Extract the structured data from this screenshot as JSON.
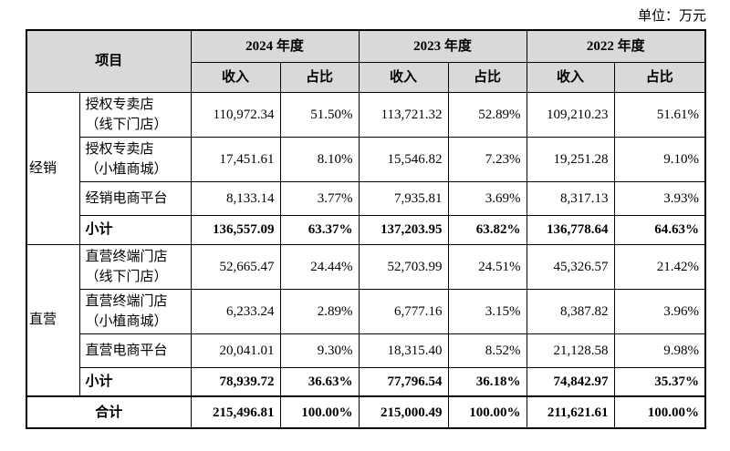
{
  "unit": "单位：万元",
  "table": {
    "header": {
      "item": "项目",
      "years": [
        "2024 年度",
        "2023 年度",
        "2022 年度"
      ],
      "sub": [
        "收入",
        "占比"
      ]
    },
    "groups": [
      {
        "name": "经销",
        "rows": [
          {
            "item": [
              "授权专卖店",
              "（线下门店）"
            ],
            "values": [
              "110,972.34",
              "51.50%",
              "113,721.32",
              "52.89%",
              "109,210.23",
              "51.61%"
            ]
          },
          {
            "item": [
              "授权专卖店",
              "（小植商城）"
            ],
            "values": [
              "17,451.61",
              "8.10%",
              "15,546.82",
              "7.23%",
              "19,251.28",
              "9.10%"
            ]
          },
          {
            "item": [
              "经销电商平台"
            ],
            "values": [
              "8,133.14",
              "3.77%",
              "7,935.81",
              "3.69%",
              "8,317.13",
              "3.93%"
            ]
          },
          {
            "item": [
              "小计"
            ],
            "bold": true,
            "values": [
              "136,557.09",
              "63.37%",
              "137,203.95",
              "63.82%",
              "136,778.64",
              "64.63%"
            ]
          }
        ]
      },
      {
        "name": "直营",
        "rows": [
          {
            "item": [
              "直营终端门店",
              "（线下门店）"
            ],
            "values": [
              "52,665.47",
              "24.44%",
              "52,703.99",
              "24.51%",
              "45,326.57",
              "21.42%"
            ]
          },
          {
            "item": [
              "直营终端门店",
              "（小植商城）"
            ],
            "values": [
              "6,233.24",
              "2.89%",
              "6,777.16",
              "3.15%",
              "8,387.82",
              "3.96%"
            ]
          },
          {
            "item": [
              "直营电商平台"
            ],
            "values": [
              "20,041.01",
              "9.30%",
              "18,315.40",
              "8.52%",
              "21,128.58",
              "9.98%"
            ]
          },
          {
            "item": [
              "小计"
            ],
            "bold": true,
            "values": [
              "78,939.72",
              "36.63%",
              "77,796.54",
              "36.18%",
              "74,842.97",
              "35.37%"
            ]
          }
        ]
      }
    ],
    "total": {
      "label": "合计",
      "values": [
        "215,496.81",
        "100.00%",
        "215,000.49",
        "100.00%",
        "211,621.61",
        "100.00%"
      ]
    }
  }
}
